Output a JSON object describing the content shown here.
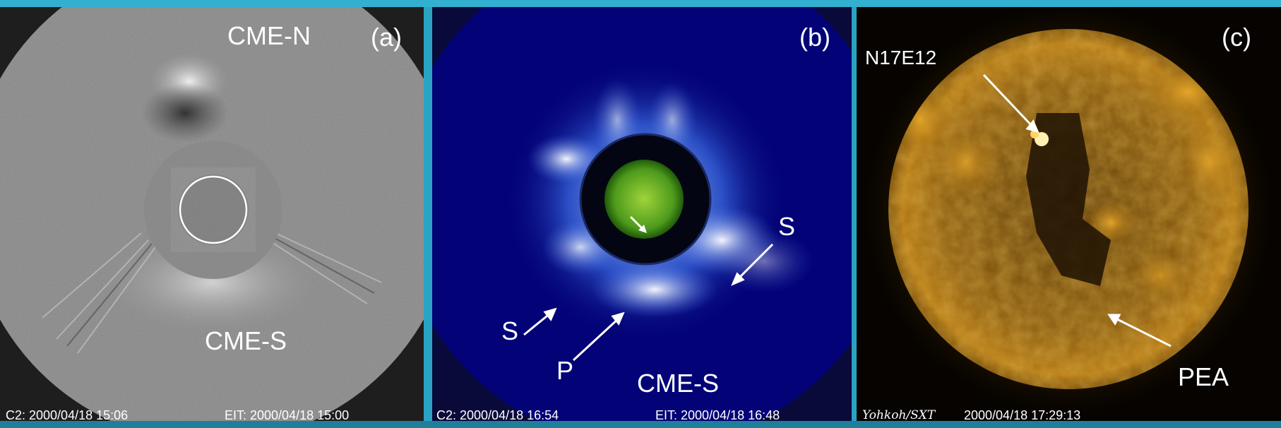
{
  "panels": {
    "a": {
      "label": "(a)",
      "cme_north": "CME-N",
      "cme_south": "CME-S",
      "footer_left": "C2: 2000/04/18 15:06",
      "footer_right": "EIT: 2000/04/18 15:00"
    },
    "b": {
      "label": "(b)",
      "marker_s_right": "S",
      "marker_s_left": "S",
      "marker_p": "P",
      "cme_south": "CME-S",
      "footer_left": "C2: 2000/04/18 16:54",
      "footer_right": "EIT: 2000/04/18 16:48"
    },
    "c": {
      "label": "(c)",
      "region": "N17E12",
      "feature": "PEA",
      "footer_instrument": "Yohkoh/SXT",
      "footer_time": "2000/04/18 17:29:13"
    }
  },
  "colors": {
    "background_frame": "#2aa3c3",
    "panel_a_gray": "#7f7f7f",
    "panel_b_blue": "#010166",
    "panel_c_orange": "#c98a17"
  }
}
